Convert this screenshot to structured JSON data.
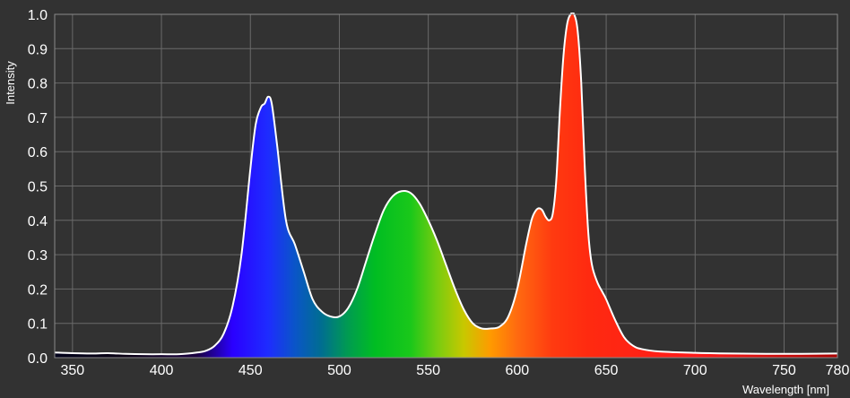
{
  "chart_data": {
    "type": "area",
    "xlabel": "Wavelength [nm]",
    "ylabel": "Intensity",
    "xlim": [
      340,
      780
    ],
    "ylim": [
      0,
      1.0
    ],
    "x_ticks": [
      350,
      400,
      450,
      500,
      550,
      600,
      650,
      700,
      750,
      780
    ],
    "y_ticks": [
      0.0,
      0.1,
      0.2,
      0.3,
      0.4,
      0.5,
      0.6,
      0.7,
      0.8,
      0.9,
      1.0
    ],
    "grid": true,
    "fill": "visible-spectrum gradient",
    "series": [
      {
        "x": [
          340,
          350,
          360,
          370,
          380,
          390,
          400,
          410,
          420,
          425,
          430,
          435,
          440,
          445,
          450,
          453,
          456,
          458,
          460,
          462,
          465,
          470,
          475,
          480,
          485,
          490,
          495,
          500,
          505,
          510,
          515,
          520,
          525,
          530,
          535,
          540,
          545,
          550,
          555,
          560,
          565,
          570,
          575,
          580,
          585,
          590,
          595,
          600,
          605,
          608,
          610,
          612,
          614,
          616,
          618,
          620,
          622,
          624,
          626,
          628,
          630,
          632,
          634,
          636,
          638,
          640,
          642,
          645,
          648,
          650,
          655,
          660,
          665,
          670,
          680,
          700,
          720,
          740,
          760,
          780
        ],
        "y": [
          0.015,
          0.013,
          0.012,
          0.013,
          0.011,
          0.01,
          0.01,
          0.01,
          0.015,
          0.02,
          0.035,
          0.07,
          0.15,
          0.3,
          0.55,
          0.68,
          0.73,
          0.74,
          0.76,
          0.74,
          0.62,
          0.4,
          0.33,
          0.25,
          0.17,
          0.135,
          0.12,
          0.12,
          0.145,
          0.2,
          0.28,
          0.36,
          0.43,
          0.47,
          0.485,
          0.48,
          0.45,
          0.4,
          0.34,
          0.27,
          0.2,
          0.14,
          0.1,
          0.085,
          0.085,
          0.09,
          0.12,
          0.2,
          0.33,
          0.4,
          0.425,
          0.435,
          0.43,
          0.41,
          0.4,
          0.42,
          0.52,
          0.72,
          0.88,
          0.97,
          1.0,
          1.0,
          0.95,
          0.8,
          0.55,
          0.36,
          0.27,
          0.22,
          0.19,
          0.17,
          0.11,
          0.06,
          0.035,
          0.025,
          0.018,
          0.014,
          0.012,
          0.011,
          0.011,
          0.012
        ]
      }
    ]
  },
  "colors": {
    "background": "#323232",
    "grid": "#6a6a6a",
    "curve": "#ffffff",
    "text": "#ffffff"
  }
}
